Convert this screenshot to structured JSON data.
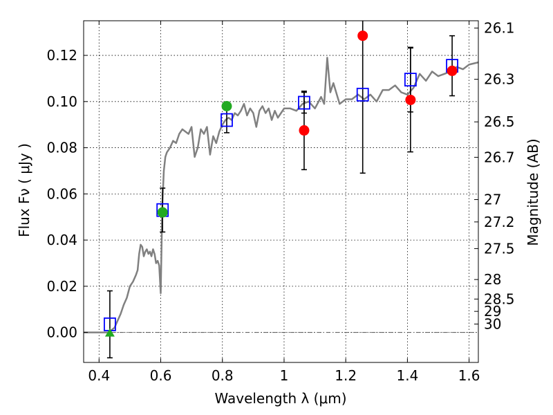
{
  "chart_data": {
    "type": "scatter",
    "title": "",
    "xlabel": "Wavelength  λ (μm)",
    "ylabel": "Flux  Fν  ( μJy )",
    "y2label": "Magnitude (AB)",
    "xlim": [
      0.35,
      1.63
    ],
    "ylim": [
      -0.013,
      0.135
    ],
    "x_ticks": [
      "0.4",
      "0.6",
      "0.8",
      "1",
      "1.2",
      "1.4",
      "1.6"
    ],
    "y_ticks": [
      "0.00",
      "0.02",
      "0.04",
      "0.06",
      "0.08",
      "0.10",
      "0.12"
    ],
    "mag_ticks": [
      "26.1",
      "26.3",
      "26.5",
      "26.7",
      "27",
      "27.2",
      "27.5",
      "28",
      "28.5",
      "29",
      "30"
    ],
    "grid": true,
    "colors": {
      "model": "#808080",
      "squares": "#0000ff",
      "green_points": "#22aa22",
      "red_points": "#ff0000",
      "errorbars": "#000000",
      "zero_line": "#555555"
    },
    "series": [
      {
        "marker": "open-square",
        "points": [
          {
            "x": 0.435,
            "y": 0.0035,
            "yerr": 0.0145
          },
          {
            "x": 0.606,
            "y": 0.053,
            "yerr": 0.0095
          },
          {
            "x": 0.814,
            "y": 0.092,
            "yerr": 0.0055
          },
          {
            "x": 1.065,
            "y": 0.0995,
            "yerr": 0.0045
          },
          {
            "x": 1.255,
            "y": 0.103,
            "yerr": 0.034
          },
          {
            "x": 1.41,
            "y": 0.1095,
            "yerr": 0.014
          },
          {
            "x": 1.545,
            "y": 0.1155,
            "yerr": 0.013
          }
        ]
      },
      {
        "marker": "filled-circle-green",
        "points": [
          {
            "x": 0.606,
            "y": 0.052
          },
          {
            "x": 0.814,
            "y": 0.098
          }
        ]
      },
      {
        "marker": "filled-triangle-green",
        "points": [
          {
            "x": 0.435,
            "y": 0.0
          }
        ]
      },
      {
        "marker": "filled-circle-red",
        "points": [
          {
            "x": 1.065,
            "y": 0.0875,
            "yerr": 0.017
          },
          {
            "x": 1.255,
            "y": 0.1285,
            "yerr": 0.0
          },
          {
            "x": 1.41,
            "y": 0.1007,
            "yerr": 0.0225
          },
          {
            "x": 1.545,
            "y": 0.1133,
            "yerr": 0.0
          }
        ]
      },
      {
        "marker": "line-model",
        "x": [
          0.35,
          0.43,
          0.45,
          0.47,
          0.48,
          0.49,
          0.5,
          0.51,
          0.52,
          0.525,
          0.53,
          0.535,
          0.54,
          0.545,
          0.55,
          0.555,
          0.56,
          0.565,
          0.57,
          0.575,
          0.58,
          0.585,
          0.59,
          0.595,
          0.6,
          0.605,
          0.61,
          0.615,
          0.62,
          0.63,
          0.64,
          0.65,
          0.66,
          0.67,
          0.68,
          0.69,
          0.7,
          0.71,
          0.72,
          0.73,
          0.74,
          0.75,
          0.76,
          0.77,
          0.78,
          0.79,
          0.8,
          0.81,
          0.82,
          0.83,
          0.84,
          0.85,
          0.86,
          0.87,
          0.88,
          0.89,
          0.9,
          0.91,
          0.92,
          0.93,
          0.94,
          0.95,
          0.96,
          0.97,
          0.98,
          0.99,
          1.0,
          1.02,
          1.04,
          1.06,
          1.08,
          1.1,
          1.12,
          1.13,
          1.14,
          1.15,
          1.16,
          1.18,
          1.2,
          1.22,
          1.24,
          1.26,
          1.28,
          1.3,
          1.32,
          1.34,
          1.36,
          1.38,
          1.4,
          1.42,
          1.44,
          1.46,
          1.48,
          1.5,
          1.52,
          1.54,
          1.56,
          1.58,
          1.6,
          1.63
        ],
        "y": [
          0.0,
          0.0,
          0.002,
          0.008,
          0.012,
          0.015,
          0.02,
          0.022,
          0.025,
          0.027,
          0.034,
          0.038,
          0.037,
          0.033,
          0.035,
          0.036,
          0.034,
          0.035,
          0.033,
          0.036,
          0.034,
          0.03,
          0.031,
          0.029,
          0.017,
          0.055,
          0.07,
          0.076,
          0.078,
          0.08,
          0.083,
          0.082,
          0.086,
          0.088,
          0.087,
          0.086,
          0.089,
          0.076,
          0.08,
          0.088,
          0.086,
          0.089,
          0.077,
          0.085,
          0.082,
          0.087,
          0.09,
          0.092,
          0.093,
          0.092,
          0.095,
          0.094,
          0.096,
          0.099,
          0.094,
          0.097,
          0.095,
          0.089,
          0.096,
          0.098,
          0.095,
          0.097,
          0.092,
          0.096,
          0.093,
          0.095,
          0.097,
          0.097,
          0.096,
          0.099,
          0.1,
          0.097,
          0.102,
          0.099,
          0.119,
          0.104,
          0.108,
          0.099,
          0.101,
          0.101,
          0.103,
          0.101,
          0.103,
          0.1,
          0.105,
          0.105,
          0.107,
          0.104,
          0.103,
          0.106,
          0.112,
          0.109,
          0.113,
          0.111,
          0.112,
          0.113,
          0.115,
          0.114,
          0.116,
          0.117
        ]
      }
    ]
  }
}
